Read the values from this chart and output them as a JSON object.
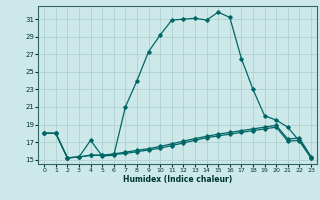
{
  "title": "",
  "xlabel": "Humidex (Indice chaleur)",
  "bg_color": "#cce8e8",
  "grid_color": "#aacccc",
  "line_color": "#006666",
  "xlim": [
    -0.5,
    23.5
  ],
  "ylim": [
    14.5,
    32.5
  ],
  "xticks": [
    0,
    1,
    2,
    3,
    4,
    5,
    6,
    7,
    8,
    9,
    10,
    11,
    12,
    13,
    14,
    15,
    16,
    17,
    18,
    19,
    20,
    21,
    22,
    23
  ],
  "yticks": [
    15,
    17,
    19,
    21,
    23,
    25,
    27,
    29,
    31
  ],
  "line1_y": [
    18.0,
    18.0,
    15.2,
    15.3,
    17.2,
    15.4,
    15.5,
    21.0,
    24.0,
    27.3,
    29.2,
    30.9,
    31.0,
    31.1,
    30.9,
    31.8,
    31.2,
    26.5,
    23.0,
    20.0,
    19.5,
    18.7,
    17.1,
    15.2
  ],
  "line2_y": [
    18.0,
    18.0,
    15.2,
    15.3,
    15.5,
    15.5,
    15.6,
    15.7,
    15.9,
    16.1,
    16.3,
    16.6,
    16.9,
    17.2,
    17.5,
    17.7,
    17.9,
    18.1,
    18.3,
    18.5,
    18.7,
    17.1,
    17.2,
    15.2
  ],
  "line3_y": [
    18.0,
    18.0,
    15.2,
    15.3,
    15.5,
    15.5,
    15.65,
    15.85,
    16.05,
    16.25,
    16.5,
    16.8,
    17.1,
    17.4,
    17.65,
    17.9,
    18.1,
    18.3,
    18.5,
    18.7,
    18.9,
    17.35,
    17.45,
    15.35
  ]
}
